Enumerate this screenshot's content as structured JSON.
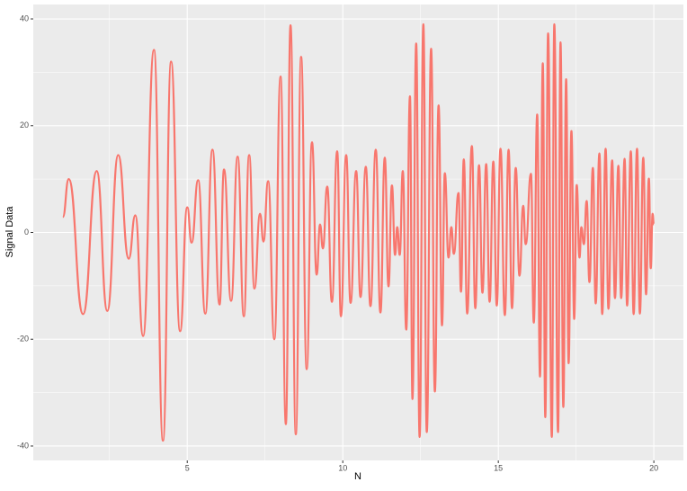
{
  "chart_data": {
    "type": "line",
    "x_label": "N",
    "y_label": "Signal Data",
    "xlim": [
      0.05,
      20.95
    ],
    "ylim": [
      -42.7,
      42.7
    ],
    "xticks": [
      5,
      10,
      15,
      20
    ],
    "yticks": [
      -40,
      -20,
      0,
      20,
      40
    ],
    "x_minor": [
      2.5,
      7.5,
      12.5,
      17.5
    ],
    "y_minor": [
      -30,
      -10,
      10,
      30
    ],
    "grid": true,
    "x": [
      1,
      1.19,
      1.65,
      2.09,
      2.43,
      2.78,
      3.12,
      3.33,
      3.58,
      3.93,
      4.22,
      4.48,
      4.77,
      5.0,
      5.14,
      5.35,
      5.58,
      5.81,
      6.04,
      6.18,
      6.41,
      6.62,
      6.82,
      6.99,
      7.16,
      7.34,
      7.45,
      7.6,
      7.8,
      8.0,
      8.17,
      8.32,
      8.49,
      8.66,
      8.84,
      9.01,
      9.16,
      9.27,
      9.36,
      9.5,
      9.65,
      9.82,
      9.94,
      10.11,
      10.25,
      10.43,
      10.57,
      10.74,
      10.89,
      11.06,
      11.21,
      11.35,
      11.47,
      11.58,
      11.68,
      11.75,
      11.83,
      11.93,
      12.04,
      12.16,
      12.24,
      12.36,
      12.47,
      12.59,
      12.7,
      12.84,
      12.96,
      13.08,
      13.19,
      13.28,
      13.4,
      13.49,
      13.57,
      13.72,
      13.8,
      13.89,
      14.0,
      14.15,
      14.26,
      14.38,
      14.49,
      14.61,
      14.72,
      14.84,
      14.95,
      15.07,
      15.21,
      15.33,
      15.44,
      15.56,
      15.68,
      15.8,
      15.88,
      16.05,
      16.14,
      16.25,
      16.34,
      16.43,
      16.51,
      16.6,
      16.72,
      16.8,
      16.92,
      17.0,
      17.09,
      17.18,
      17.26,
      17.35,
      17.44,
      17.52,
      17.61,
      17.67,
      17.75,
      17.84,
      17.93,
      18.04,
      18.13,
      18.25,
      18.34,
      18.45,
      18.54,
      18.66,
      18.75,
      18.86,
      18.95,
      19.06,
      19.14,
      19.26,
      19.35,
      19.46,
      19.55,
      19.66,
      19.75,
      19.84,
      19.9,
      19.96,
      20
    ],
    "series": [
      {
        "color": "#F8766D",
        "values": [
          2.9,
          10,
          -15.3,
          11.5,
          -14.7,
          14.5,
          -4.9,
          3.2,
          -19.4,
          34.2,
          -39,
          32,
          -18.5,
          4.7,
          -1.9,
          9.8,
          -15.2,
          15.5,
          -13.5,
          11.8,
          -12.8,
          14.2,
          -15.7,
          14.5,
          -10.5,
          3.5,
          -1.7,
          9.6,
          -20,
          29.2,
          -35.9,
          38.8,
          -37.8,
          32.9,
          -25.6,
          16.9,
          -7.9,
          1.5,
          -3,
          8.6,
          -13,
          15.2,
          -15.7,
          14.5,
          -13.2,
          11.5,
          -12.1,
          12.3,
          -13.8,
          15.5,
          -15,
          14,
          -10.1,
          8.8,
          -4.2,
          1,
          -4.2,
          11.5,
          -18.2,
          25.5,
          -31.2,
          35.4,
          -38.3,
          39,
          -37.4,
          34.4,
          -29.8,
          23.8,
          -17.4,
          11.1,
          -4.7,
          1,
          -4,
          7.4,
          -11.1,
          13.7,
          -15.2,
          16.2,
          -14.2,
          12.6,
          -11.3,
          12.8,
          -13,
          13.3,
          -13.7,
          15.7,
          -15.5,
          15.5,
          -14.2,
          12.1,
          -8.1,
          5,
          -2.2,
          11,
          -16.9,
          22.1,
          -27,
          31.7,
          -34.6,
          37.3,
          -38.3,
          39,
          -37.4,
          35.6,
          -32.7,
          28.7,
          -24.5,
          19,
          -16.2,
          8.9,
          -4.7,
          1,
          -2.2,
          5.9,
          -9.3,
          12.1,
          -13.3,
          14.8,
          -15.3,
          15.7,
          -14.3,
          13.5,
          -12.3,
          12.5,
          -12.3,
          13.8,
          -13.7,
          15.2,
          -15.3,
          15.7,
          -15.2,
          14,
          -11.6,
          10.1,
          -6.7,
          3.5,
          1.5
        ]
      }
    ]
  }
}
